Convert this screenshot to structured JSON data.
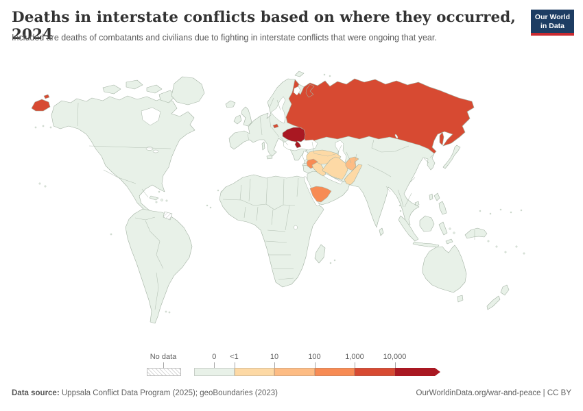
{
  "header": {
    "title": "Deaths in interstate conflicts based on where they occurred, 2024",
    "subtitle": "Included are deaths of combatants and civilians due to fighting in interstate conflicts that were ongoing that year.",
    "logo": {
      "line1": "Our World",
      "line2": "in Data"
    }
  },
  "chart_data": {
    "type": "choropleth_map",
    "title": "Deaths in interstate conflicts based on where they occurred, 2024",
    "year": 2024,
    "legend": {
      "no_data_label": "No data",
      "tick_labels": [
        "0",
        "<1",
        "10",
        "100",
        "1,000",
        "10,000"
      ],
      "bucket_colors": [
        "#e8f1e8",
        "#fdd9a5",
        "#fdbc84",
        "#f78b54",
        "#d74a32",
        "#a91822"
      ],
      "bucket_ranges": [
        "0",
        "<1–10",
        "10–100",
        "100–1,000",
        "1,000–10,000",
        "10,000+"
      ],
      "no_data_pattern": "diagonal-hatch"
    },
    "countries": [
      {
        "name": "Ukraine",
        "bucket": "10,000+",
        "bucket_index": 5
      },
      {
        "name": "Russia",
        "bucket": "1,000–10,000",
        "bucket_index": 4
      },
      {
        "name": "Syria",
        "bucket": "100–1,000",
        "bucket_index": 3
      },
      {
        "name": "Yemen",
        "bucket": "100–1,000",
        "bucket_index": 3
      },
      {
        "name": "Afghanistan",
        "bucket": "10–100",
        "bucket_index": 2
      },
      {
        "name": "Turkey",
        "bucket": "<1–10",
        "bucket_index": 1
      },
      {
        "name": "Iraq",
        "bucket": "<1–10",
        "bucket_index": 1
      },
      {
        "name": "Iran",
        "bucket": "<1–10",
        "bucket_index": 1
      },
      {
        "name": "Pakistan",
        "bucket": "<1–10",
        "bucket_index": 1
      },
      {
        "name": "All other countries shown",
        "bucket": "0",
        "bucket_index": 0
      }
    ]
  },
  "footer": {
    "data_source_label": "Data source:",
    "data_source": " Uppsala Conflict Data Program (2025); geoBoundaries (2023)",
    "credit": "OurWorldinData.org/war-and-peace | CC BY"
  }
}
